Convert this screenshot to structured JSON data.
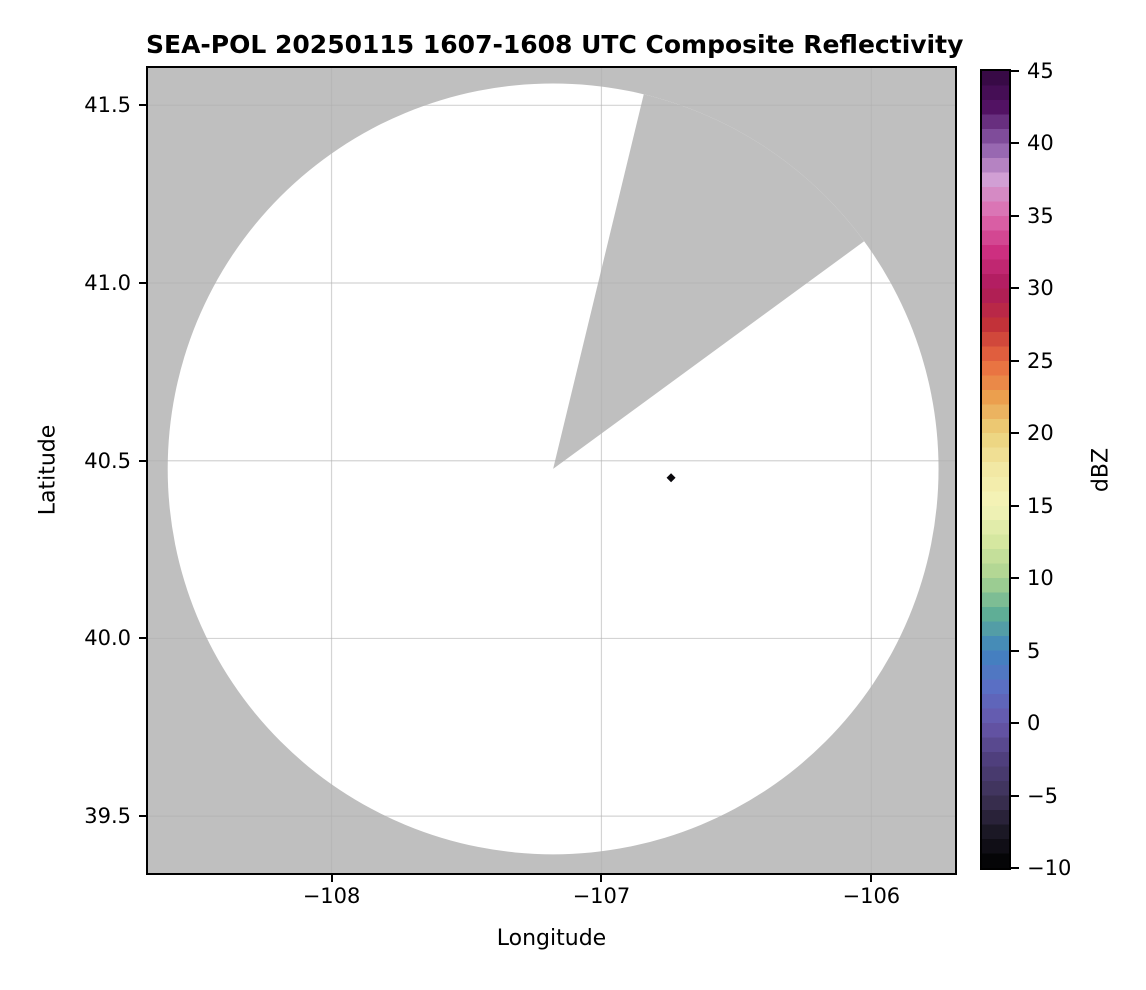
{
  "chart_data": {
    "type": "radar_ppi_composite_reflectivity_map",
    "title": "SEA-POL 20250115 1607-1608 UTC Composite Reflectivity",
    "xlabel": "Longitude",
    "ylabel": "Latitude",
    "xlim": [
      -108.68,
      -105.69
    ],
    "ylim": [
      39.34,
      41.605
    ],
    "grid": true,
    "grid_color": "#b0b0b0",
    "xticks": {
      "values": [
        -108,
        -107,
        -106
      ],
      "labels": [
        "−108",
        "−107",
        "−106"
      ]
    },
    "yticks": {
      "values": [
        41.5,
        41.0,
        40.5,
        40.0,
        39.5
      ],
      "labels": [
        "41.5",
        "41.0",
        "40.5",
        "40.0",
        "39.5"
      ]
    },
    "radar_coverage": {
      "center_lon": -107.179,
      "center_lat": 40.477,
      "radius_lon_deg": 1.428,
      "coverage_color": "#ffffff",
      "nodata_color": "#bfbfbf",
      "missing_sector_azimuths_deg": [
        [
          13.6,
          53.8
        ]
      ]
    },
    "points": [
      {
        "lon": -106.742,
        "lat": 40.452,
        "dbz": -8,
        "marker": "diamond",
        "color": "#0a090d"
      }
    ],
    "colorbar": {
      "label": "dBZ",
      "vmin": -10,
      "vmax": 45,
      "band_step": 1.0,
      "ticks": {
        "values": [
          45,
          40,
          35,
          30,
          25,
          20,
          15,
          10,
          5,
          0,
          -5,
          -10
        ],
        "labels": [
          "45",
          "40",
          "35",
          "30",
          "25",
          "20",
          "15",
          "10",
          "5",
          "0",
          "−5",
          "−10"
        ]
      },
      "stops": [
        [
          -10.0,
          "#000000"
        ],
        [
          -7.5,
          "#1b1825"
        ],
        [
          -5.0,
          "#3e3257"
        ],
        [
          -2.5,
          "#4f3f7d"
        ],
        [
          0.0,
          "#6757ab"
        ],
        [
          2.5,
          "#5a6fc4"
        ],
        [
          5.0,
          "#4083bf"
        ],
        [
          7.5,
          "#5fae96"
        ],
        [
          10.0,
          "#aad391"
        ],
        [
          12.5,
          "#d5e7a0"
        ],
        [
          15.0,
          "#f4f4b9"
        ],
        [
          17.5,
          "#f2e8a4"
        ],
        [
          20.0,
          "#ecd27b"
        ],
        [
          22.5,
          "#eb9f4e"
        ],
        [
          25.0,
          "#e8693f"
        ],
        [
          27.5,
          "#c23239"
        ],
        [
          30.0,
          "#ac1a5b"
        ],
        [
          32.5,
          "#cd2f80"
        ],
        [
          35.0,
          "#dc6aad"
        ],
        [
          37.5,
          "#d19fd4"
        ],
        [
          40.0,
          "#8a5aa8"
        ],
        [
          42.5,
          "#521263"
        ],
        [
          45.0,
          "#31083f"
        ]
      ]
    }
  }
}
